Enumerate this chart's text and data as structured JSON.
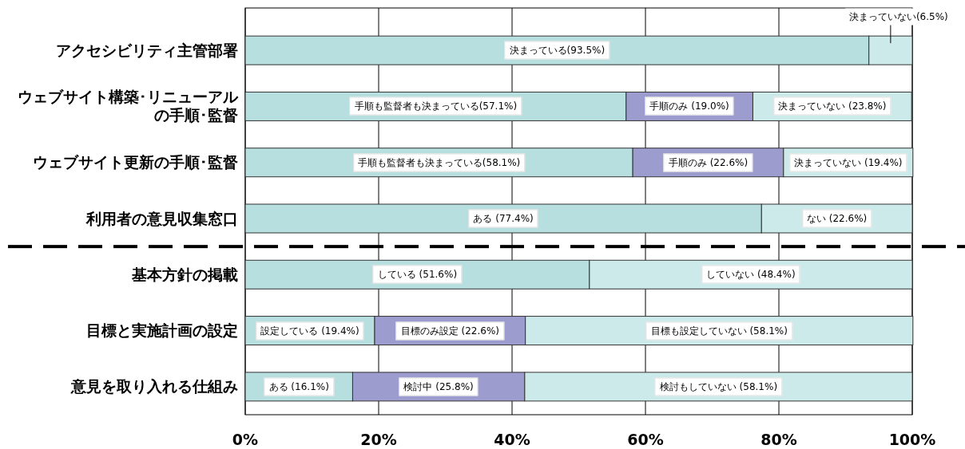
{
  "chart_data": {
    "type": "bar",
    "orientation": "horizontal",
    "stacked": true,
    "categories": [
      "アクセシビリティ主管部署",
      "ウェブサイト構築･リニューアルの手順･監督",
      "ウェブサイト更新の手順･監督",
      "利用者の意見収集窓口",
      "基本方針の掲載",
      "目標と実施計画の設定",
      "意見を取り入れる仕組み"
    ],
    "series": [
      {
        "color": "#b7dfe0",
        "values": [
          93.5,
          57.1,
          58.1,
          77.4,
          51.6,
          19.4,
          16.1
        ],
        "value_labels": [
          "決まっている(93.5%)",
          "手順も監督者も決まっている(57.1%)",
          "手順も監督者も決まっている(58.1%)",
          "ある (77.4%)",
          "している (51.6%)",
          "設定している (19.4%)",
          "ある (16.1%)"
        ]
      },
      {
        "color": "#9c9ccf",
        "values": [
          null,
          19.0,
          22.6,
          null,
          null,
          22.6,
          25.8
        ],
        "value_labels": [
          null,
          "手順のみ (19.0%)",
          "手順のみ (22.6%)",
          null,
          null,
          "目標のみ設定 (22.6%)",
          "検討中 (25.8%)"
        ]
      },
      {
        "color": "#cdeaea",
        "values": [
          6.5,
          23.8,
          19.4,
          22.6,
          48.4,
          58.1,
          58.1
        ],
        "value_labels": [
          "決まっていない(6.5%)",
          "決まっていない (23.8%)",
          "決まっていない (19.4%)",
          "ない (22.6%)",
          "していない (48.4%)",
          "目標も設定していない (58.1%)",
          "検討もしていない (58.1%)"
        ]
      }
    ],
    "xlim": [
      0,
      100
    ],
    "xticks": [
      {
        "value": 0,
        "label": "0%"
      },
      {
        "value": 20,
        "label": "20%"
      },
      {
        "value": 40,
        "label": "40%"
      },
      {
        "value": 60,
        "label": "60%"
      },
      {
        "value": 80,
        "label": "80%"
      },
      {
        "value": 100,
        "label": "100%"
      }
    ],
    "grid": "x"
  }
}
